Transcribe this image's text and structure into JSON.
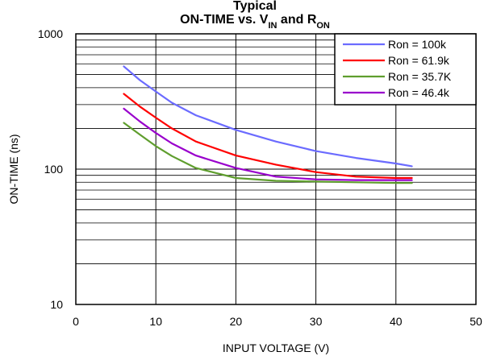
{
  "chart_data": {
    "type": "line",
    "title_lines": [
      {
        "text": "Typical",
        "sub": ""
      },
      {
        "text": "ON-TIME vs. V",
        "sub": "IN",
        "text2": " and R",
        "sub2": "ON"
      }
    ],
    "xlabel": "INPUT VOLTAGE (V)",
    "ylabel": "ON-TIME (ns)",
    "xlim": [
      0,
      50
    ],
    "ylim": [
      10,
      1000
    ],
    "yscale": "log",
    "x_ticks": [
      0,
      10,
      20,
      30,
      40,
      50
    ],
    "y_ticks": [
      10,
      100,
      1000
    ],
    "grid": true,
    "legend_position": "top-right",
    "series": [
      {
        "name": "Ron = 100k",
        "color": "#6b6bff",
        "x": [
          6,
          8,
          10,
          12,
          15,
          20,
          25,
          30,
          35,
          40,
          42
        ],
        "y": [
          575,
          455,
          375,
          310,
          250,
          195,
          160,
          136,
          121,
          110,
          105
        ]
      },
      {
        "name": "Ron = 61.9k",
        "color": "#ff0000",
        "x": [
          6,
          8,
          10,
          12,
          15,
          20,
          25,
          30,
          35,
          40,
          42
        ],
        "y": [
          360,
          290,
          240,
          200,
          160,
          126,
          108,
          95,
          88,
          86,
          86
        ]
      },
      {
        "name": "Ron = 35.7K",
        "color": "#5f9e2e",
        "x": [
          6,
          8,
          10,
          12,
          15,
          20,
          25,
          30,
          35,
          40,
          42
        ],
        "y": [
          220,
          180,
          148,
          125,
          102,
          86,
          82,
          81,
          80,
          79,
          79
        ]
      },
      {
        "name": "Ron = 46.4k",
        "color": "#9900cc",
        "x": [
          6,
          8,
          10,
          12,
          15,
          20,
          25,
          30,
          35,
          40,
          42
        ],
        "y": [
          280,
          225,
          185,
          155,
          126,
          102,
          88,
          84,
          83,
          83,
          83
        ]
      }
    ]
  }
}
